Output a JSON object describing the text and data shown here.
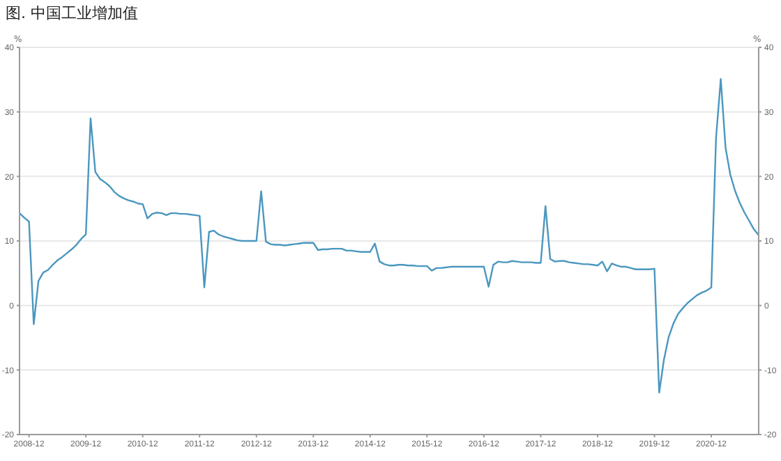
{
  "chart_data": {
    "type": "line",
    "title": "图. 中国工业增加值",
    "ylabel": "%",
    "y2label": "%",
    "x": [
      "2008-10",
      "2008-11",
      "2008-12",
      "2009-01",
      "2009-02",
      "2009-03",
      "2009-04",
      "2009-05",
      "2009-06",
      "2009-07",
      "2009-08",
      "2009-09",
      "2009-10",
      "2009-11",
      "2009-12",
      "2010-01",
      "2010-02",
      "2010-03",
      "2010-04",
      "2010-05",
      "2010-06",
      "2010-07",
      "2010-08",
      "2010-09",
      "2010-10",
      "2010-11",
      "2010-12",
      "2011-01",
      "2011-02",
      "2011-03",
      "2011-04",
      "2011-05",
      "2011-06",
      "2011-07",
      "2011-08",
      "2011-09",
      "2011-10",
      "2011-11",
      "2011-12",
      "2012-01",
      "2012-02",
      "2012-03",
      "2012-04",
      "2012-05",
      "2012-06",
      "2012-07",
      "2012-08",
      "2012-09",
      "2012-10",
      "2012-11",
      "2012-12",
      "2013-01",
      "2013-02",
      "2013-03",
      "2013-04",
      "2013-05",
      "2013-06",
      "2013-07",
      "2013-08",
      "2013-09",
      "2013-10",
      "2013-11",
      "2013-12",
      "2014-01",
      "2014-02",
      "2014-03",
      "2014-04",
      "2014-05",
      "2014-06",
      "2014-07",
      "2014-08",
      "2014-09",
      "2014-10",
      "2014-11",
      "2014-12",
      "2015-01",
      "2015-02",
      "2015-03",
      "2015-04",
      "2015-05",
      "2015-06",
      "2015-07",
      "2015-08",
      "2015-09",
      "2015-10",
      "2015-11",
      "2015-12",
      "2016-01",
      "2016-02",
      "2016-03",
      "2016-04",
      "2016-05",
      "2016-06",
      "2016-07",
      "2016-08",
      "2016-09",
      "2016-10",
      "2016-11",
      "2016-12",
      "2017-01",
      "2017-02",
      "2017-03",
      "2017-04",
      "2017-05",
      "2017-06",
      "2017-07",
      "2017-08",
      "2017-09",
      "2017-10",
      "2017-11",
      "2017-12",
      "2018-01",
      "2018-02",
      "2018-03",
      "2018-04",
      "2018-05",
      "2018-06",
      "2018-07",
      "2018-08",
      "2018-09",
      "2018-10",
      "2018-11",
      "2018-12",
      "2019-01",
      "2019-02",
      "2019-03",
      "2019-04",
      "2019-05",
      "2019-06",
      "2019-07",
      "2019-08",
      "2019-09",
      "2019-10",
      "2019-11",
      "2019-12",
      "2020-01",
      "2020-02",
      "2020-03",
      "2020-04",
      "2020-05",
      "2020-06",
      "2020-07",
      "2020-08",
      "2020-09",
      "2020-10",
      "2020-11",
      "2020-12",
      "2021-01",
      "2021-02",
      "2021-03",
      "2021-04",
      "2021-05",
      "2021-06",
      "2021-07",
      "2021-08",
      "2021-09",
      "2021-10"
    ],
    "series": [
      {
        "color": "#4a97bf",
        "values": [
          14.3,
          13.6,
          13,
          -2.9,
          3.8,
          5.1,
          5.5,
          6.3,
          7,
          7.5,
          8.1,
          8.7,
          9.4,
          10.3,
          11,
          29,
          20.7,
          19.6,
          19.1,
          18.5,
          17.6,
          17,
          16.6,
          16.3,
          16.1,
          15.8,
          15.7,
          13.5,
          14.2,
          14.4,
          14.3,
          14,
          14.3,
          14.3,
          14.2,
          14.2,
          14.1,
          14,
          13.9,
          2.8,
          11.4,
          11.6,
          11,
          10.7,
          10.5,
          10.3,
          10.1,
          10,
          10,
          10,
          10,
          17.7,
          9.9,
          9.5,
          9.4,
          9.4,
          9.3,
          9.4,
          9.5,
          9.6,
          9.7,
          9.7,
          9.7,
          8.6,
          8.7,
          8.7,
          8.8,
          8.8,
          8.8,
          8.5,
          8.5,
          8.4,
          8.3,
          8.3,
          8.3,
          9.6,
          6.8,
          6.4,
          6.2,
          6.2,
          6.3,
          6.3,
          6.2,
          6.2,
          6.1,
          6.1,
          6.1,
          5.4,
          5.8,
          5.8,
          5.9,
          6,
          6,
          6,
          6,
          6,
          6,
          6,
          6,
          2.9,
          6.3,
          6.8,
          6.7,
          6.7,
          6.9,
          6.8,
          6.7,
          6.7,
          6.7,
          6.6,
          6.6,
          15.4,
          7.2,
          6.8,
          6.9,
          6.9,
          6.7,
          6.6,
          6.5,
          6.4,
          6.4,
          6.3,
          6.2,
          6.8,
          5.3,
          6.5,
          6.2,
          6,
          6,
          5.8,
          5.6,
          5.6,
          5.6,
          5.6,
          5.7,
          -13.5,
          -8.4,
          -4.9,
          -2.8,
          -1.3,
          -0.4,
          0.4,
          1,
          1.6,
          2,
          2.3,
          2.8,
          26,
          35.1,
          24.5,
          20.3,
          17.8,
          15.9,
          14.4,
          13.1,
          11.8,
          10.9
        ]
      }
    ],
    "xlim": [
      "2008-10",
      "2021-10"
    ],
    "xticks": [
      "2008-12",
      "2009-12",
      "2010-12",
      "2011-12",
      "2012-12",
      "2013-12",
      "2014-12",
      "2015-12",
      "2016-12",
      "2017-12",
      "2018-12",
      "2019-12",
      "2020-12"
    ],
    "ylim": [
      -20,
      40
    ],
    "yticks": [
      -20,
      -10,
      0,
      10,
      20,
      30,
      40
    ],
    "y2lim": [
      -20,
      40
    ],
    "y2ticks": [
      -20,
      -10,
      0,
      10,
      20,
      30,
      40
    ],
    "grid": "y",
    "legend": false,
    "marker": "none",
    "line_style": "solid"
  }
}
